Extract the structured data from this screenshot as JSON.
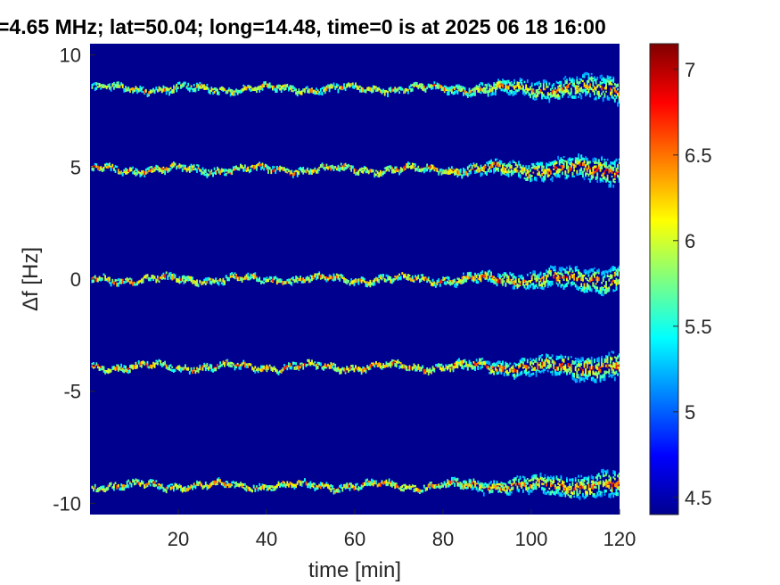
{
  "chart_data": {
    "type": "heatmap",
    "title": "=4.65 MHz;  lat=50.04; long=14.48, time=0 is at 2025 06 18 16:00",
    "xlabel": "time [min]",
    "ylabel": "Δf [Hz]",
    "xlim": [
      0,
      120
    ],
    "ylim": [
      -10.5,
      10.5
    ],
    "xticks": [
      20,
      40,
      60,
      80,
      100,
      120
    ],
    "yticks": [
      10,
      5,
      0,
      -5,
      -10
    ],
    "colorbar": {
      "colormap": "jet",
      "range": [
        4.4,
        7.15
      ],
      "ticks": [
        7,
        6.5,
        6,
        5.5,
        5,
        4.5
      ]
    },
    "background_value": 4.4,
    "traces": [
      {
        "center_hz": 8.5,
        "intensity_max": 6.8
      },
      {
        "center_hz": 4.9,
        "intensity_max": 7.1
      },
      {
        "center_hz": 0.0,
        "intensity_max": 7.0
      },
      {
        "center_hz": -3.9,
        "intensity_max": 7.1
      },
      {
        "center_hz": -9.2,
        "intensity_max": 7.0
      }
    ],
    "grid": false
  }
}
